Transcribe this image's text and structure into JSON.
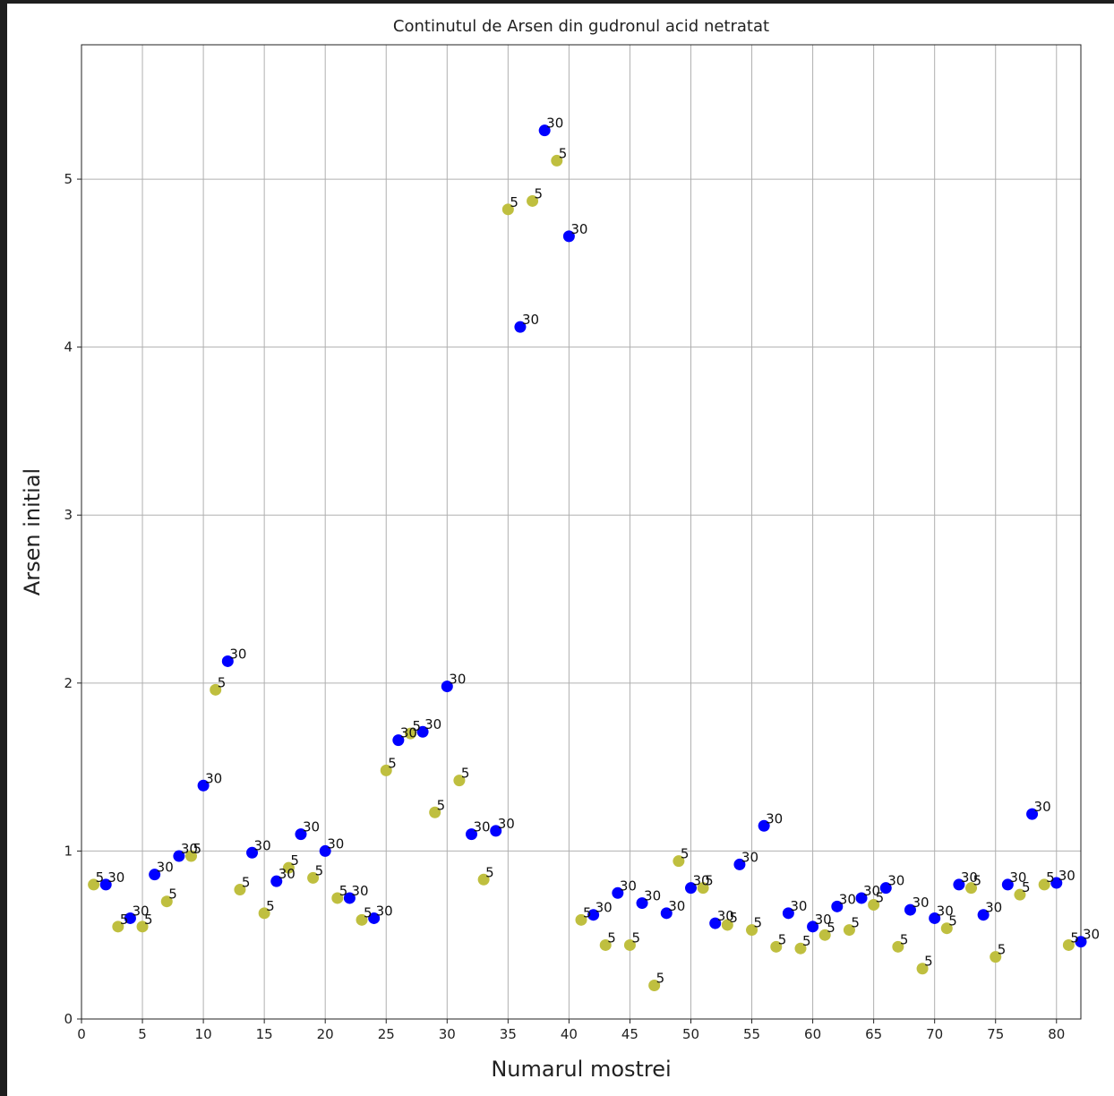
{
  "chart_data": {
    "type": "scatter",
    "title": "Continutul de Arsen din gudronul acid netratat",
    "xlabel": "Numarul mostrei",
    "ylabel": "Arsen initial",
    "xlim": [
      0,
      82
    ],
    "ylim": [
      0,
      5.8
    ],
    "xticks": [
      0,
      5,
      10,
      15,
      20,
      25,
      30,
      35,
      40,
      45,
      50,
      55,
      60,
      65,
      70,
      75,
      80
    ],
    "yticks": [
      0,
      1,
      2,
      3,
      4,
      5
    ],
    "grid": true,
    "colors": {
      "5": "#bfbf3f",
      "30": "#0000ff"
    },
    "points": [
      {
        "x": 1,
        "y": 0.8,
        "label": "5"
      },
      {
        "x": 2,
        "y": 0.8,
        "label": "30"
      },
      {
        "x": 3,
        "y": 0.55,
        "label": "5"
      },
      {
        "x": 4,
        "y": 0.6,
        "label": "30"
      },
      {
        "x": 5,
        "y": 0.55,
        "label": "5"
      },
      {
        "x": 6,
        "y": 0.86,
        "label": "30"
      },
      {
        "x": 7,
        "y": 0.7,
        "label": "5"
      },
      {
        "x": 8,
        "y": 0.97,
        "label": "30"
      },
      {
        "x": 9,
        "y": 0.97,
        "label": "5"
      },
      {
        "x": 10,
        "y": 1.39,
        "label": "30"
      },
      {
        "x": 11,
        "y": 1.96,
        "label": "5"
      },
      {
        "x": 12,
        "y": 2.13,
        "label": "30"
      },
      {
        "x": 13,
        "y": 0.77,
        "label": "5"
      },
      {
        "x": 14,
        "y": 0.99,
        "label": "30"
      },
      {
        "x": 15,
        "y": 0.63,
        "label": "5"
      },
      {
        "x": 16,
        "y": 0.82,
        "label": "30"
      },
      {
        "x": 17,
        "y": 0.9,
        "label": "5"
      },
      {
        "x": 18,
        "y": 1.1,
        "label": "30"
      },
      {
        "x": 19,
        "y": 0.84,
        "label": "5"
      },
      {
        "x": 20,
        "y": 1.0,
        "label": "30"
      },
      {
        "x": 21,
        "y": 0.72,
        "label": "5"
      },
      {
        "x": 22,
        "y": 0.72,
        "label": "30"
      },
      {
        "x": 23,
        "y": 0.59,
        "label": "5"
      },
      {
        "x": 24,
        "y": 0.6,
        "label": "30"
      },
      {
        "x": 25,
        "y": 1.48,
        "label": "5"
      },
      {
        "x": 26,
        "y": 1.66,
        "label": "30"
      },
      {
        "x": 27,
        "y": 1.7,
        "label": "5"
      },
      {
        "x": 28,
        "y": 1.71,
        "label": "30"
      },
      {
        "x": 29,
        "y": 1.23,
        "label": "5"
      },
      {
        "x": 30,
        "y": 1.98,
        "label": "30"
      },
      {
        "x": 31,
        "y": 1.42,
        "label": "5"
      },
      {
        "x": 32,
        "y": 1.1,
        "label": "30"
      },
      {
        "x": 33,
        "y": 0.83,
        "label": "5"
      },
      {
        "x": 34,
        "y": 1.12,
        "label": "30"
      },
      {
        "x": 35,
        "y": 4.82,
        "label": "5"
      },
      {
        "x": 36,
        "y": 4.12,
        "label": "30"
      },
      {
        "x": 37,
        "y": 4.87,
        "label": "5"
      },
      {
        "x": 38,
        "y": 5.29,
        "label": "30"
      },
      {
        "x": 39,
        "y": 5.11,
        "label": "5"
      },
      {
        "x": 40,
        "y": 4.66,
        "label": "30"
      },
      {
        "x": 41,
        "y": 0.59,
        "label": "5"
      },
      {
        "x": 42,
        "y": 0.62,
        "label": "30"
      },
      {
        "x": 43,
        "y": 0.44,
        "label": "5"
      },
      {
        "x": 44,
        "y": 0.75,
        "label": "30"
      },
      {
        "x": 45,
        "y": 0.44,
        "label": "5"
      },
      {
        "x": 46,
        "y": 0.69,
        "label": "30"
      },
      {
        "x": 47,
        "y": 0.2,
        "label": "5"
      },
      {
        "x": 48,
        "y": 0.63,
        "label": "30"
      },
      {
        "x": 49,
        "y": 0.94,
        "label": "5"
      },
      {
        "x": 50,
        "y": 0.78,
        "label": "30"
      },
      {
        "x": 51,
        "y": 0.78,
        "label": "5"
      },
      {
        "x": 52,
        "y": 0.57,
        "label": "30"
      },
      {
        "x": 53,
        "y": 0.56,
        "label": "5"
      },
      {
        "x": 54,
        "y": 0.92,
        "label": "30"
      },
      {
        "x": 55,
        "y": 0.53,
        "label": "5"
      },
      {
        "x": 56,
        "y": 1.15,
        "label": "30"
      },
      {
        "x": 57,
        "y": 0.43,
        "label": "5"
      },
      {
        "x": 58,
        "y": 0.63,
        "label": "30"
      },
      {
        "x": 59,
        "y": 0.42,
        "label": "5"
      },
      {
        "x": 60,
        "y": 0.55,
        "label": "30"
      },
      {
        "x": 61,
        "y": 0.5,
        "label": "5"
      },
      {
        "x": 62,
        "y": 0.67,
        "label": "30"
      },
      {
        "x": 63,
        "y": 0.53,
        "label": "5"
      },
      {
        "x": 64,
        "y": 0.72,
        "label": "30"
      },
      {
        "x": 65,
        "y": 0.68,
        "label": "5"
      },
      {
        "x": 66,
        "y": 0.78,
        "label": "30"
      },
      {
        "x": 67,
        "y": 0.43,
        "label": "5"
      },
      {
        "x": 68,
        "y": 0.65,
        "label": "30"
      },
      {
        "x": 69,
        "y": 0.3,
        "label": "5"
      },
      {
        "x": 70,
        "y": 0.6,
        "label": "30"
      },
      {
        "x": 71,
        "y": 0.54,
        "label": "5"
      },
      {
        "x": 72,
        "y": 0.8,
        "label": "30"
      },
      {
        "x": 73,
        "y": 0.78,
        "label": "5"
      },
      {
        "x": 74,
        "y": 0.62,
        "label": "30"
      },
      {
        "x": 75,
        "y": 0.37,
        "label": "5"
      },
      {
        "x": 76,
        "y": 0.8,
        "label": "30"
      },
      {
        "x": 77,
        "y": 0.74,
        "label": "5"
      },
      {
        "x": 78,
        "y": 1.22,
        "label": "30"
      },
      {
        "x": 79,
        "y": 0.8,
        "label": "5"
      },
      {
        "x": 80,
        "y": 0.81,
        "label": "30"
      },
      {
        "x": 81,
        "y": 0.44,
        "label": "5"
      },
      {
        "x": 82,
        "y": 0.46,
        "label": "30"
      }
    ]
  }
}
